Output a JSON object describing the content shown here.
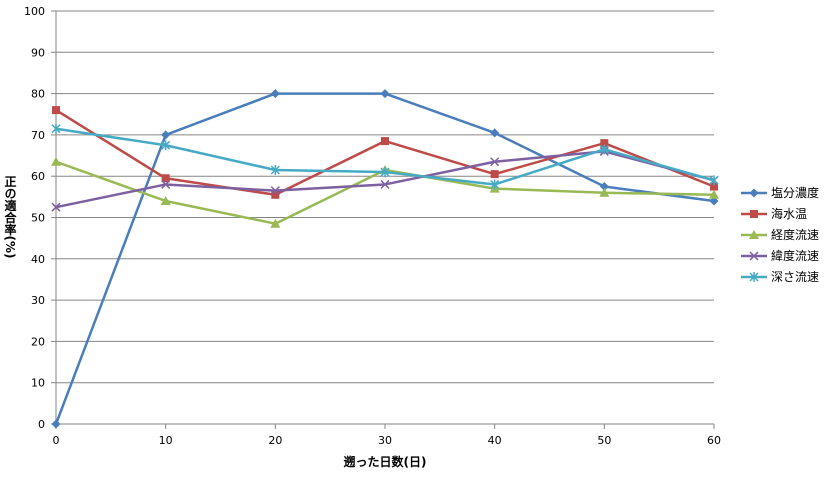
{
  "chart_data": {
    "type": "line",
    "xlabel": "遡った日数(日)",
    "ylabel": "正の適合率(%)",
    "x": [
      0,
      10,
      20,
      30,
      40,
      50,
      60
    ],
    "xlim": [
      0,
      60
    ],
    "ylim": [
      0,
      100
    ],
    "yticks": [
      0,
      10,
      20,
      30,
      40,
      50,
      60,
      70,
      80,
      90,
      100
    ],
    "grid": "horizontal",
    "legend": "right",
    "series": [
      {
        "name": "塩分濃度",
        "color": "#4a7ebb",
        "marker": "diamond",
        "values": [
          0,
          70,
          80,
          80,
          70.5,
          57.5,
          54
        ]
      },
      {
        "name": "海水温",
        "color": "#be4b48",
        "marker": "square",
        "values": [
          76,
          59.5,
          55.5,
          68.5,
          60.5,
          68,
          57.5
        ]
      },
      {
        "name": "経度流速",
        "color": "#98b954",
        "marker": "triangle",
        "values": [
          63.5,
          54,
          48.5,
          61.5,
          57,
          56,
          55.5
        ]
      },
      {
        "name": "緯度流速",
        "color": "#7d60a0",
        "marker": "x",
        "values": [
          52.5,
          58,
          56.5,
          58,
          63.5,
          66,
          59
        ]
      },
      {
        "name": "深さ流速",
        "color": "#46aac5",
        "marker": "star",
        "values": [
          71.5,
          67.5,
          61.5,
          61,
          58,
          66.5,
          59
        ]
      }
    ]
  }
}
